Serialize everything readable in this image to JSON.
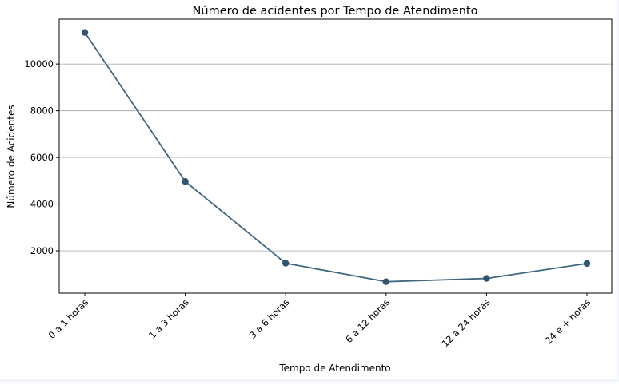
{
  "chart_data": {
    "type": "line",
    "title": "Número de acidentes por Tempo de Atendimento",
    "xlabel": "Tempo de Atendimento",
    "ylabel": "Número de Acidentes",
    "categories": [
      "0 a 1 horas",
      "1 a 3 horas",
      "3 a 6 horas",
      "6 a 12 horas",
      "12 a 24 horas",
      "24 e + horas"
    ],
    "series": [
      {
        "values": [
          11350,
          4970,
          1470,
          680,
          820,
          1460
        ]
      }
    ],
    "yticks": [
      2000,
      4000,
      6000,
      8000,
      10000
    ],
    "ylim": [
      190,
      11920
    ],
    "grid": "horizontal",
    "line_color": "#41677f",
    "marker_color": "#2f5570"
  }
}
